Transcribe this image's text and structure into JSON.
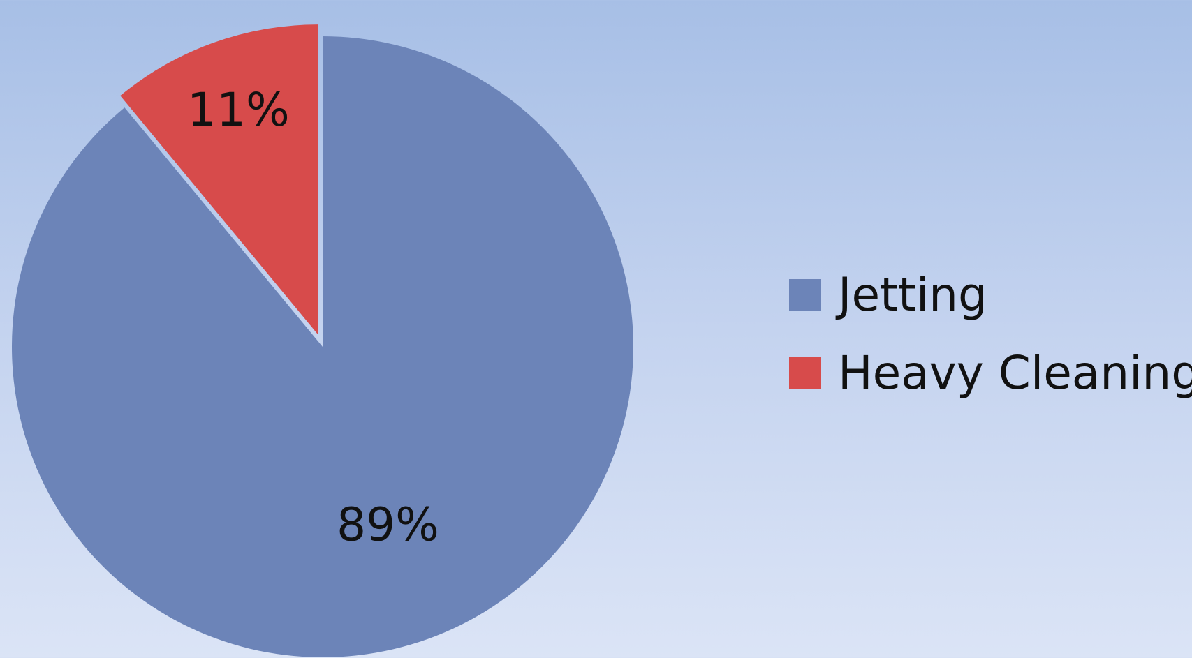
{
  "chart_data": {
    "type": "pie",
    "categories": [
      "Jetting",
      "Heavy Cleaning"
    ],
    "values": [
      89,
      11
    ],
    "data_labels": [
      "89%",
      "11%"
    ],
    "colors": [
      "#6c84b8",
      "#d74b4b"
    ],
    "exploded": "Heavy Cleaning",
    "legend_position": "right",
    "title": ""
  },
  "legend": {
    "items": [
      {
        "label": "Jetting",
        "color": "#6c84b8"
      },
      {
        "label": "Heavy Cleaning",
        "color": "#d74b4b"
      }
    ]
  }
}
